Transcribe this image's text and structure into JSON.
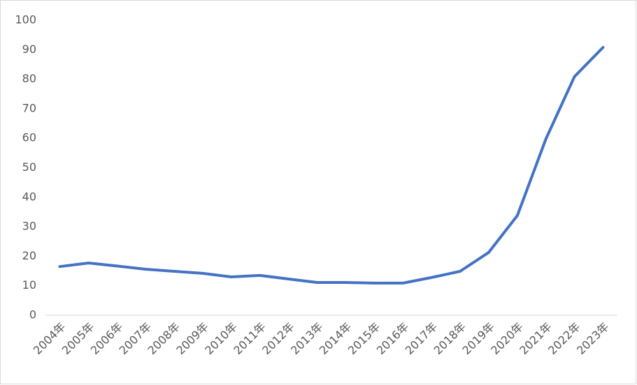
{
  "chart_data": {
    "type": "line",
    "categories": [
      "2004年",
      "2005年",
      "2006年",
      "2007年",
      "2008年",
      "2009年",
      "2010年",
      "2011年",
      "2012年",
      "2013年",
      "2014年",
      "2015年",
      "2016年",
      "2017年",
      "2018年",
      "2019年",
      "2020年",
      "2021年",
      "2022年",
      "2023年"
    ],
    "values": [
      16.5,
      17.7,
      16.7,
      15.6,
      14.9,
      14.2,
      13.0,
      13.5,
      12.3,
      11.1,
      11.1,
      10.9,
      10.9,
      12.8,
      14.9,
      21.3,
      33.8,
      59.8,
      80.9,
      90.8
    ],
    "color": "#4472c4",
    "ylim": [
      0,
      100
    ],
    "yticks": [
      0,
      10,
      20,
      30,
      40,
      50,
      60,
      70,
      80,
      90,
      100
    ],
    "grid": false
  }
}
